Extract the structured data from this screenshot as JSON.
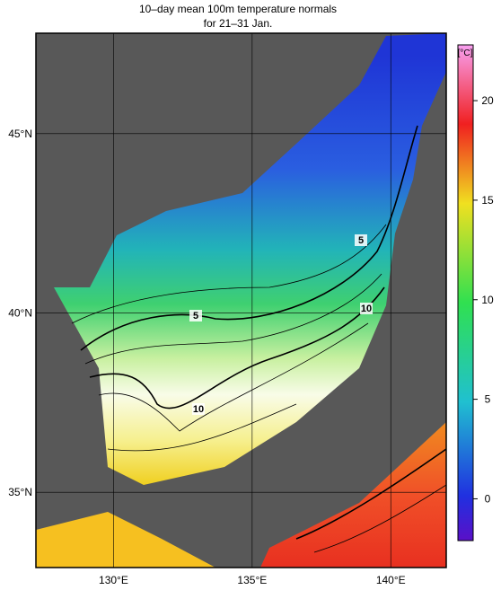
{
  "title": "10–day mean 100m temperature normals",
  "subtitle": "for 21–31 Jan.",
  "map": {
    "xlim": [
      127.2,
      142
    ],
    "ylim": [
      32.9,
      47.8
    ],
    "xticks": [
      {
        "value": 130,
        "label": "130°E"
      },
      {
        "value": 135,
        "label": "135°E"
      },
      {
        "value": 140,
        "label": "140°E"
      }
    ],
    "yticks": [
      {
        "value": 35,
        "label": "35°N"
      },
      {
        "value": 40,
        "label": "40°N"
      },
      {
        "value": 45,
        "label": "45°N"
      }
    ],
    "contour_labels": [
      "5",
      "5",
      "10",
      "10"
    ]
  },
  "colorbar": {
    "unit": "[°C]",
    "clim": [
      -2.1,
      22.8
    ],
    "ticks": [
      0,
      5,
      10,
      15,
      20
    ]
  }
}
